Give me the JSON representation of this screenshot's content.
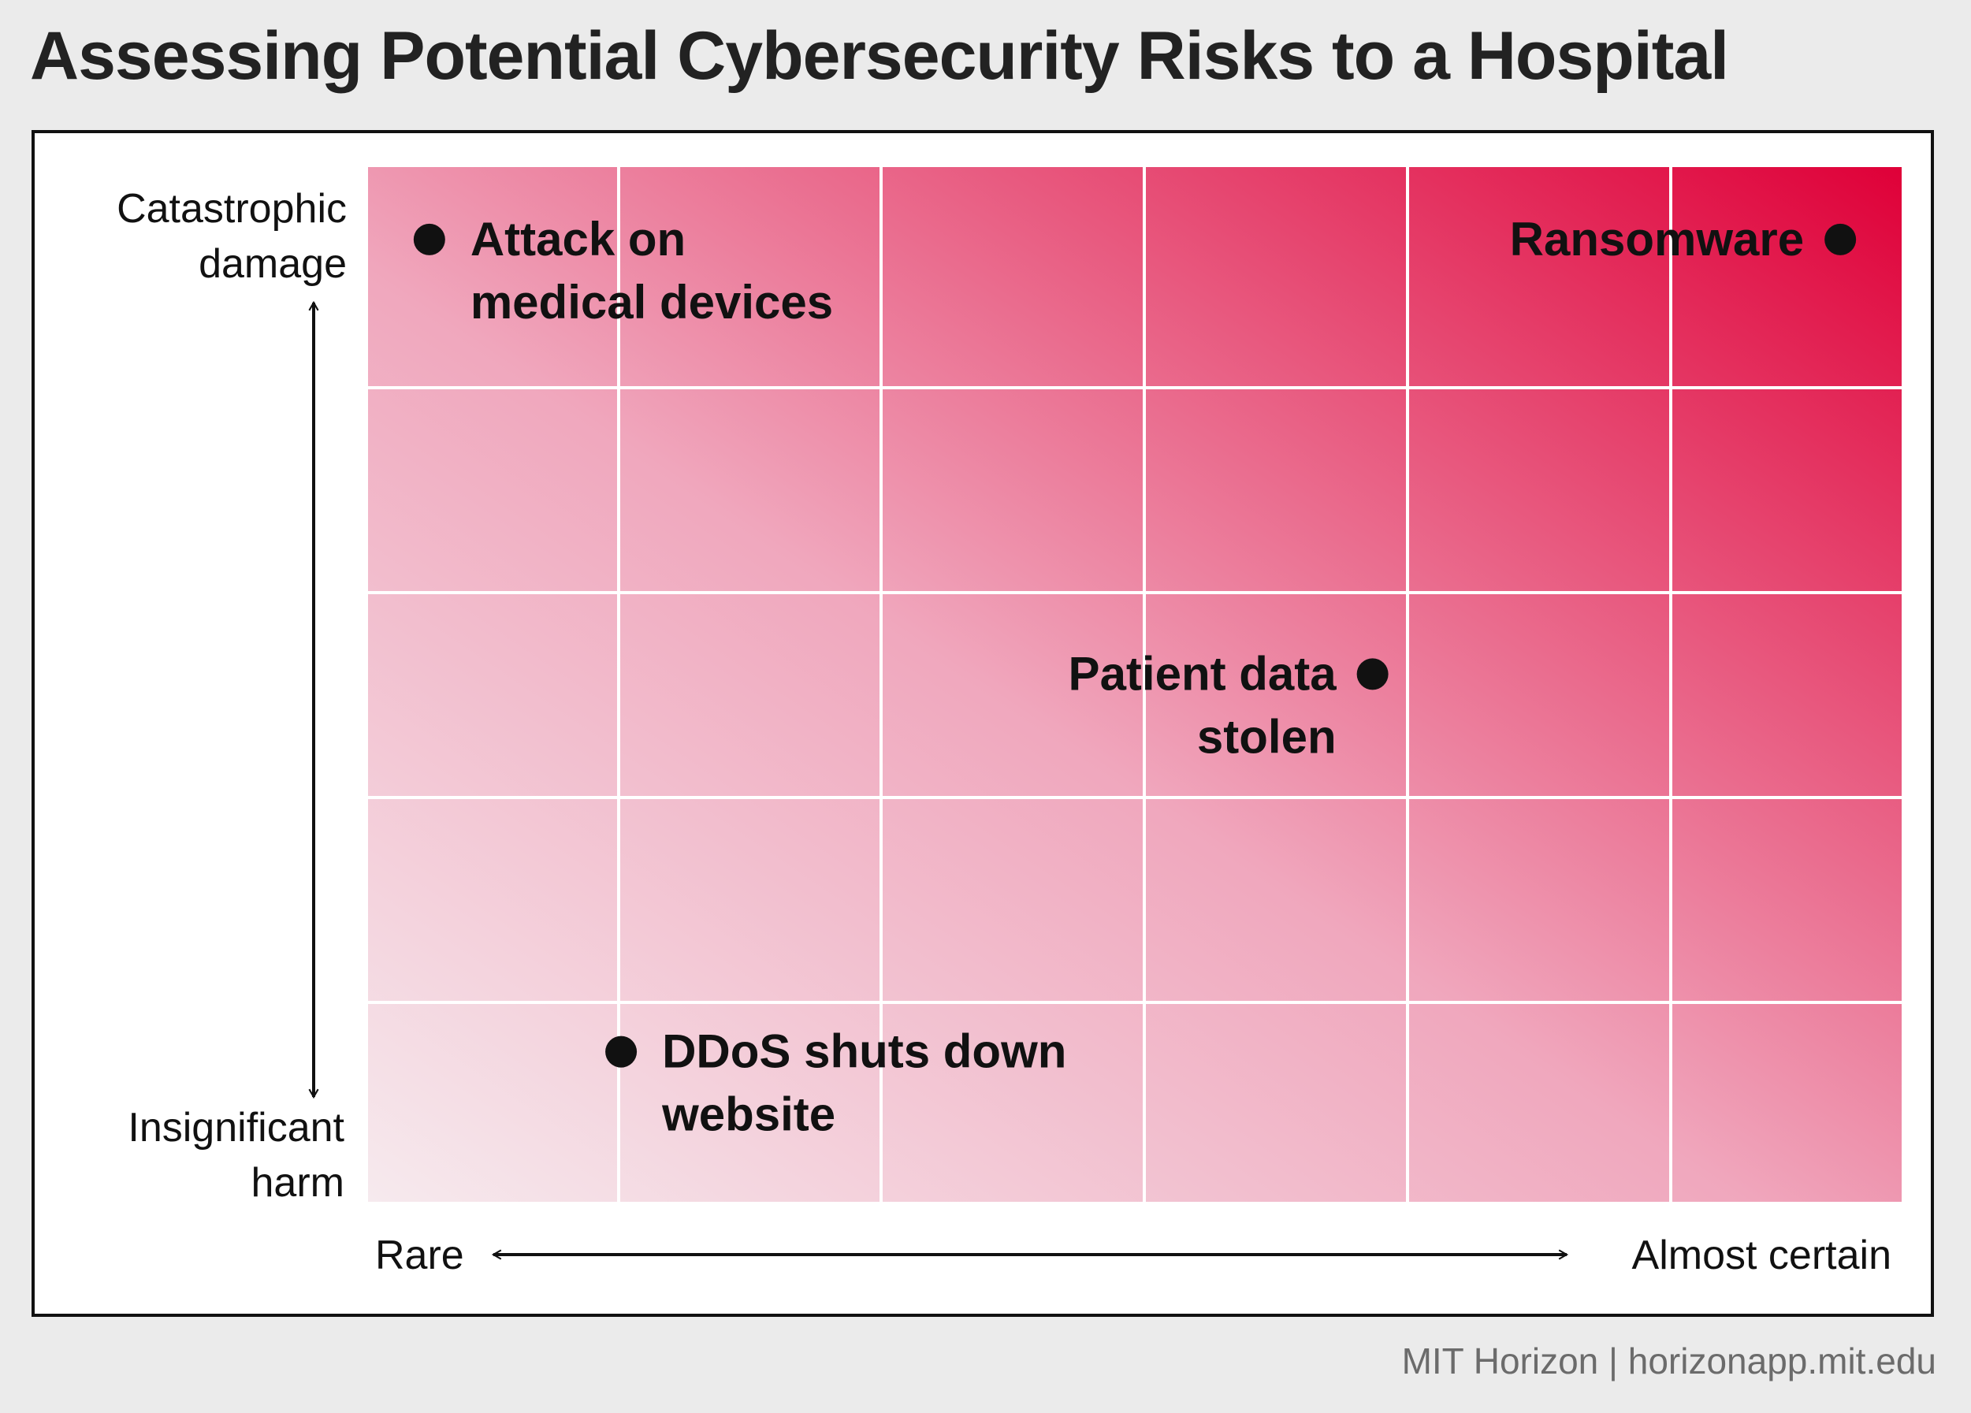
{
  "title": "Assessing Potential Cybersecurity Risks to a Hospital",
  "footer": "MIT Horizon | horizonapp.mit.edu",
  "colors": {
    "gradient_low": "#f6eaee",
    "gradient_mid": "#f0a7bd",
    "gradient_high": "#df0038",
    "grid": "#ffffff",
    "ink": "#111111"
  },
  "chart_data": {
    "type": "scatter",
    "title": "Assessing Potential Cybersecurity Risks to a Hospital",
    "xlabel_low": "Rare",
    "xlabel_high": "Almost certain",
    "ylabel_high": [
      "Catastrophic",
      "damage"
    ],
    "ylabel_low": [
      "Insignificant",
      "harm"
    ],
    "xlim": [
      0,
      100
    ],
    "ylim": [
      0,
      100
    ],
    "grid": true,
    "points": [
      {
        "name": "Attack on medical devices",
        "label_lines": [
          "Attack on",
          "medical devices"
        ],
        "x": 4,
        "y": 93,
        "label_side": "right"
      },
      {
        "name": "Ransomware",
        "label_lines": [
          "Ransomware"
        ],
        "x": 96,
        "y": 93,
        "label_side": "left"
      },
      {
        "name": "Patient data stolen",
        "label_lines": [
          "Patient data",
          "stolen"
        ],
        "x": 65.5,
        "y": 51,
        "label_side": "left"
      },
      {
        "name": "DDoS shuts down website",
        "label_lines": [
          "DDoS shuts down",
          "website"
        ],
        "x": 16.5,
        "y": 14.5,
        "label_side": "right"
      }
    ]
  }
}
